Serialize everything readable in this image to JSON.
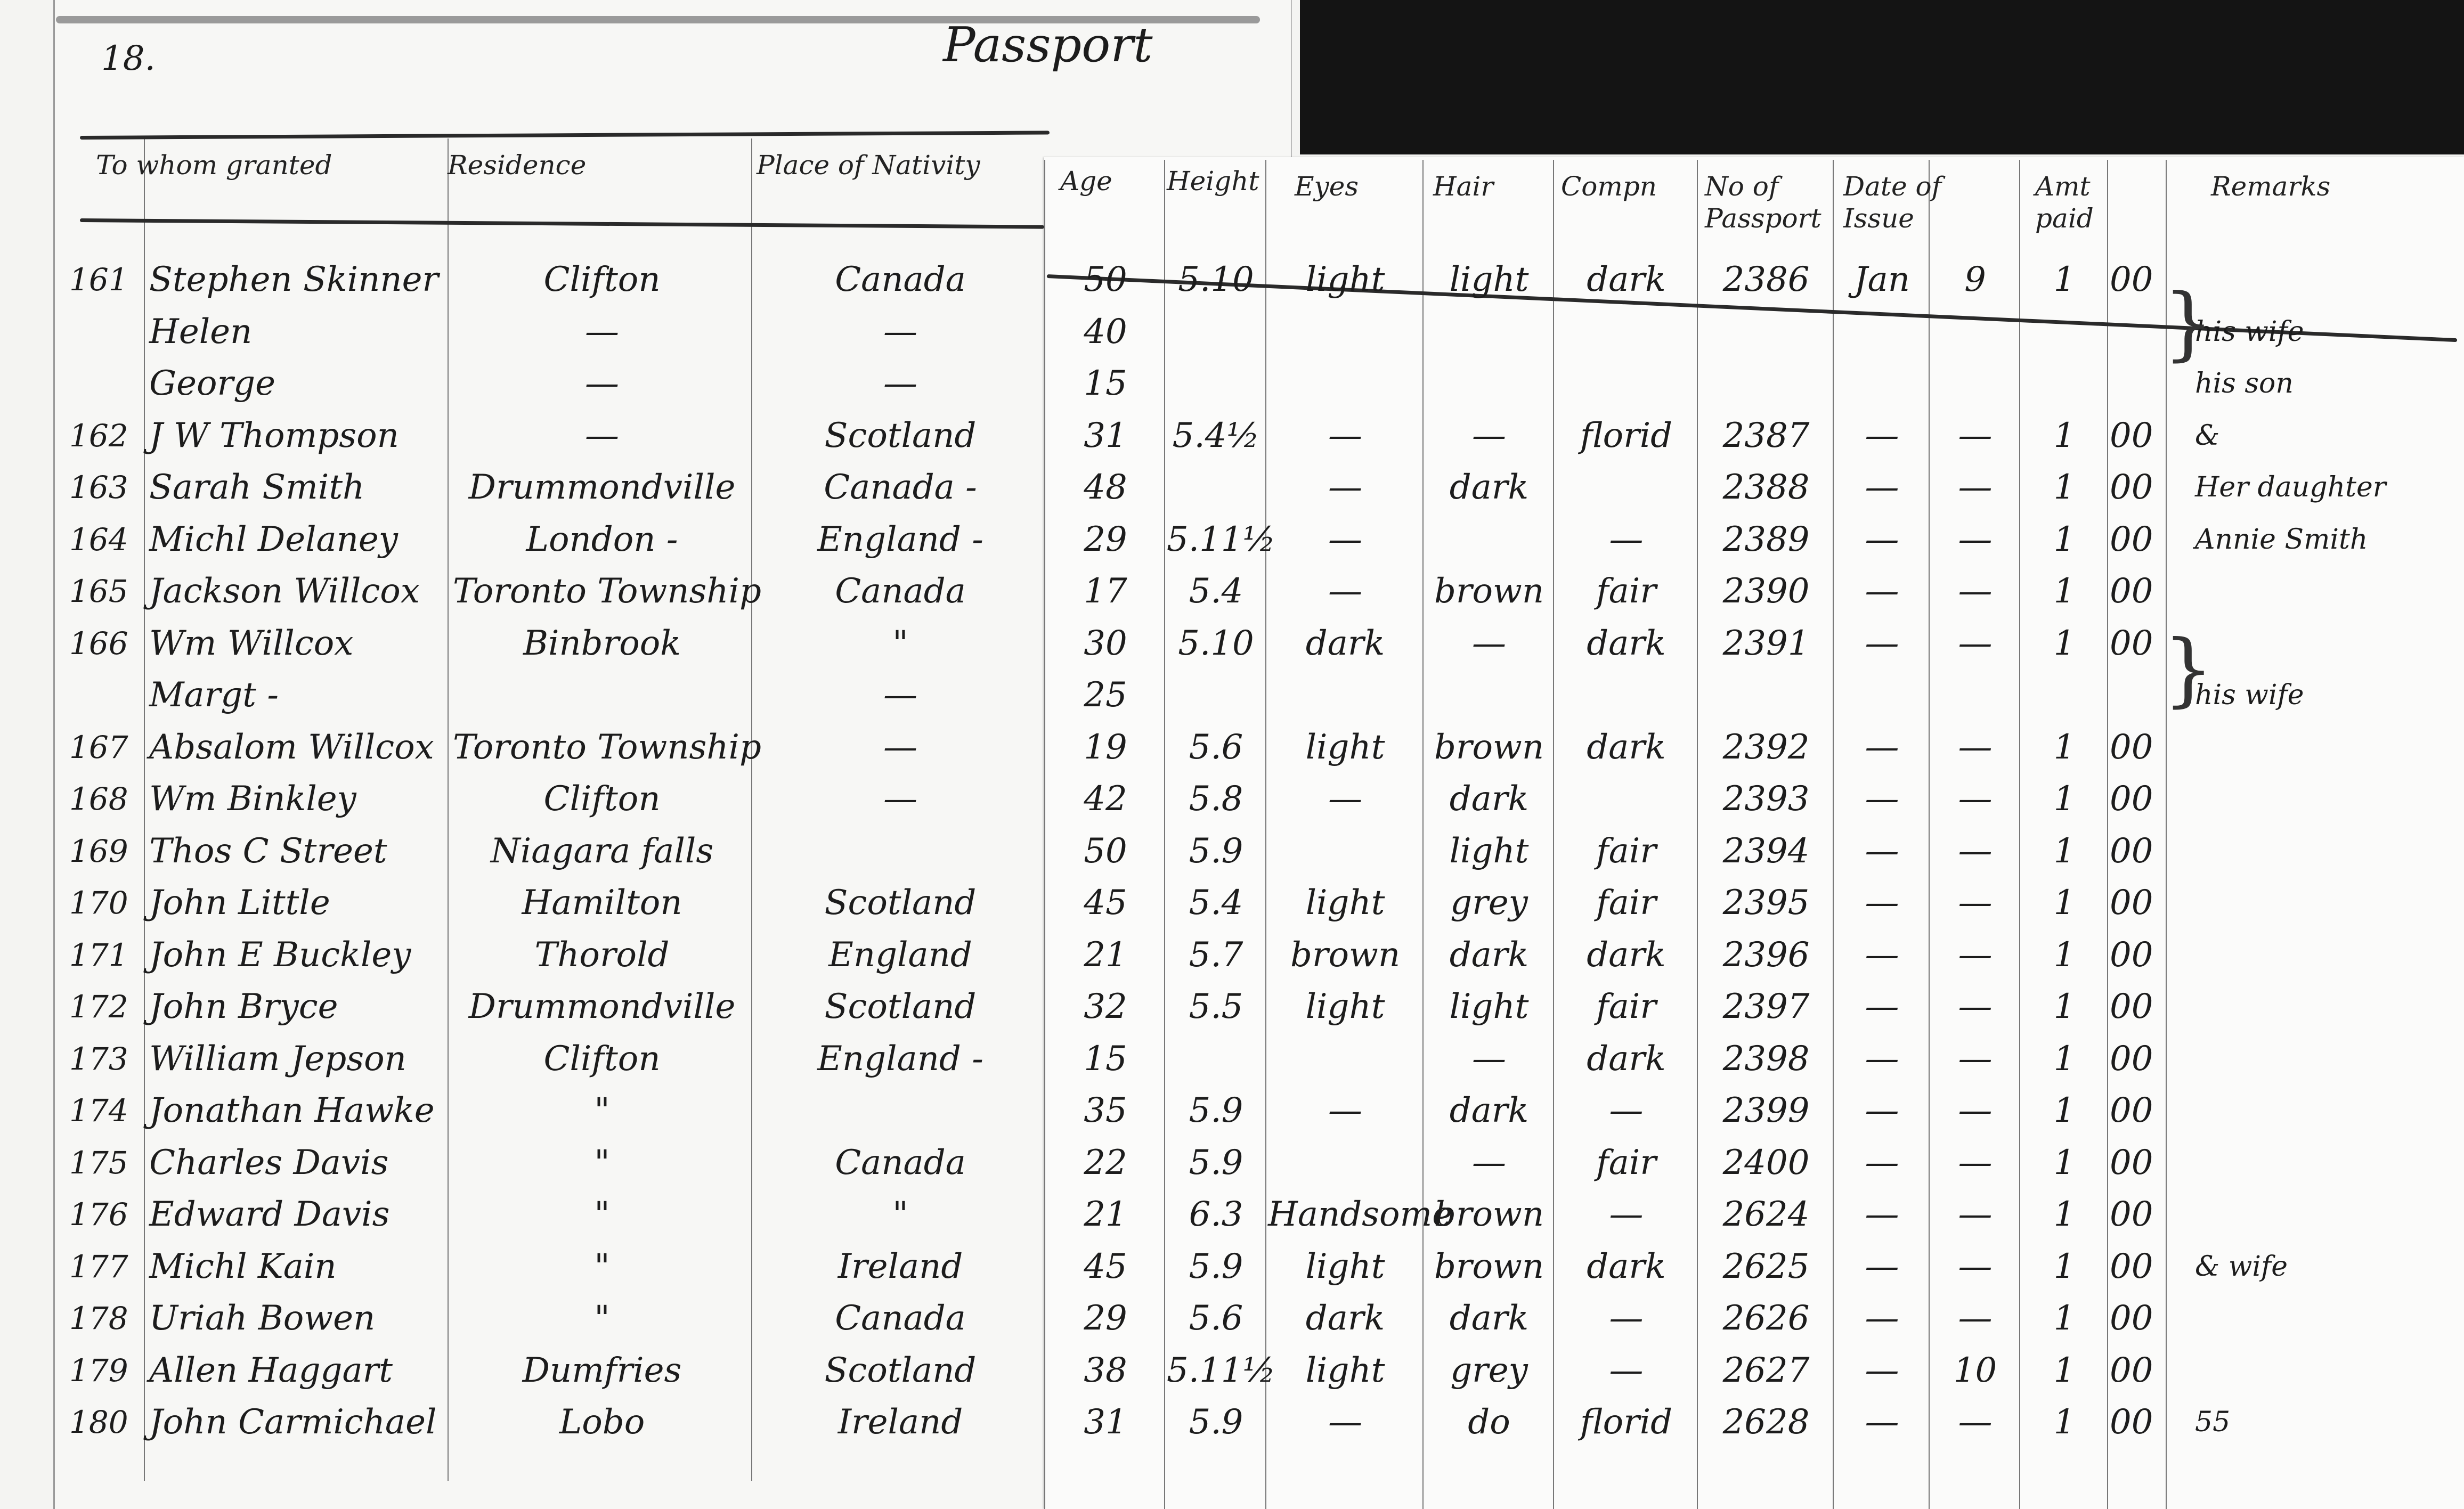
{
  "page": {
    "number": "18.",
    "title": "Passport"
  },
  "columns": [
    "To whom granted",
    "Residence",
    "Place of Nativity",
    "Age",
    "Height",
    "Eyes",
    "Hair",
    "Compn",
    "No of Passport",
    "Date of Issue",
    "Amt paid",
    "Remarks"
  ],
  "rows": [
    {
      "no": "161",
      "name": "Stephen Skinner",
      "residence": "Clifton",
      "nativity": "Canada",
      "age": "50",
      "height": "5.10",
      "eyes": "light",
      "hair": "light",
      "comp": "dark",
      "passport": "2386",
      "date1": "Jan",
      "date2": "9",
      "paid": "1",
      "paid2": "00",
      "remarks": ""
    },
    {
      "no": "",
      "name": "Helen",
      "residence": "—",
      "nativity": "—",
      "age": "40",
      "height": "",
      "eyes": "",
      "hair": "",
      "comp": "",
      "passport": "",
      "date1": "",
      "date2": "",
      "paid": "",
      "paid2": "",
      "remarks": "his wife"
    },
    {
      "no": "",
      "name": "George",
      "residence": "—",
      "nativity": "—",
      "age": "15",
      "height": "",
      "eyes": "",
      "hair": "",
      "comp": "",
      "passport": "",
      "date1": "",
      "date2": "",
      "paid": "",
      "paid2": "",
      "remarks": "his son"
    },
    {
      "no": "162",
      "name": "J W Thompson",
      "residence": "—",
      "nativity": "Scotland",
      "age": "31",
      "height": "5.4½",
      "eyes": "—",
      "hair": "—",
      "comp": "florid",
      "passport": "2387",
      "date1": "—",
      "date2": "—",
      "paid": "1",
      "paid2": "00",
      "remarks": "&"
    },
    {
      "no": "163",
      "name": "Sarah Smith",
      "residence": "Drummondville",
      "nativity": "Canada -",
      "age": "48",
      "height": "",
      "eyes": "—",
      "hair": "dark",
      "comp": "",
      "passport": "2388",
      "date1": "—",
      "date2": "—",
      "paid": "1",
      "paid2": "00",
      "remarks": "Her daughter"
    },
    {
      "no": "164",
      "name": "Michl Delaney",
      "residence": "London -",
      "nativity": "England -",
      "age": "29",
      "height": "5.11½",
      "eyes": "—",
      "hair": "",
      "comp": "—",
      "passport": "2389",
      "date1": "—",
      "date2": "—",
      "paid": "1",
      "paid2": "00",
      "remarks": "Annie Smith"
    },
    {
      "no": "165",
      "name": "Jackson Willcox",
      "residence": "Toronto Township",
      "nativity": "Canada",
      "age": "17",
      "height": "5.4",
      "eyes": "—",
      "hair": "brown",
      "comp": "fair",
      "passport": "2390",
      "date1": "—",
      "date2": "—",
      "paid": "1",
      "paid2": "00",
      "remarks": ""
    },
    {
      "no": "166",
      "name": "Wm Willcox",
      "residence": "Binbrook",
      "nativity": "\"",
      "age": "30",
      "height": "5.10",
      "eyes": "dark",
      "hair": "—",
      "comp": "dark",
      "passport": "2391",
      "date1": "—",
      "date2": "—",
      "paid": "1",
      "paid2": "00",
      "remarks": ""
    },
    {
      "no": "",
      "name": "Margt -",
      "residence": "",
      "nativity": "—",
      "age": "25",
      "height": "",
      "eyes": "",
      "hair": "",
      "comp": "",
      "passport": "",
      "date1": "",
      "date2": "",
      "paid": "",
      "paid2": "",
      "remarks": "his wife"
    },
    {
      "no": "167",
      "name": "Absalom Willcox",
      "residence": "Toronto Township",
      "nativity": "—",
      "age": "19",
      "height": "5.6",
      "eyes": "light",
      "hair": "brown",
      "comp": "dark",
      "passport": "2392",
      "date1": "—",
      "date2": "—",
      "paid": "1",
      "paid2": "00",
      "remarks": ""
    },
    {
      "no": "168",
      "name": "Wm Binkley",
      "residence": "Clifton",
      "nativity": "—",
      "age": "42",
      "height": "5.8",
      "eyes": "—",
      "hair": "dark",
      "comp": "",
      "passport": "2393",
      "date1": "—",
      "date2": "—",
      "paid": "1",
      "paid2": "00",
      "remarks": ""
    },
    {
      "no": "169",
      "name": "Thos C Street",
      "residence": "Niagara falls",
      "nativity": "",
      "age": "50",
      "height": "5.9",
      "eyes": "",
      "hair": "light",
      "comp": "fair",
      "passport": "2394",
      "date1": "—",
      "date2": "—",
      "paid": "1",
      "paid2": "00",
      "remarks": ""
    },
    {
      "no": "170",
      "name": "John Little",
      "residence": "Hamilton",
      "nativity": "Scotland",
      "age": "45",
      "height": "5.4",
      "eyes": "light",
      "hair": "grey",
      "comp": "fair",
      "passport": "2395",
      "date1": "—",
      "date2": "—",
      "paid": "1",
      "paid2": "00",
      "remarks": ""
    },
    {
      "no": "171",
      "name": "John E Buckley",
      "residence": "Thorold",
      "nativity": "England",
      "age": "21",
      "height": "5.7",
      "eyes": "brown",
      "hair": "dark",
      "comp": "dark",
      "passport": "2396",
      "date1": "—",
      "date2": "—",
      "paid": "1",
      "paid2": "00",
      "remarks": ""
    },
    {
      "no": "172",
      "name": "John Bryce",
      "residence": "Drummondville",
      "nativity": "Scotland",
      "age": "32",
      "height": "5.5",
      "eyes": "light",
      "hair": "light",
      "comp": "fair",
      "passport": "2397",
      "date1": "—",
      "date2": "—",
      "paid": "1",
      "paid2": "00",
      "remarks": ""
    },
    {
      "no": "173",
      "name": "William Jepson",
      "residence": "Clifton",
      "nativity": "England -",
      "age": "15",
      "height": "",
      "eyes": "",
      "hair": "—",
      "comp": "dark",
      "passport": "2398",
      "date1": "—",
      "date2": "—",
      "paid": "1",
      "paid2": "00",
      "remarks": ""
    },
    {
      "no": "174",
      "name": "Jonathan Hawke",
      "residence": "\"",
      "nativity": "",
      "age": "35",
      "height": "5.9",
      "eyes": "—",
      "hair": "dark",
      "comp": "—",
      "passport": "2399",
      "date1": "—",
      "date2": "—",
      "paid": "1",
      "paid2": "00",
      "remarks": ""
    },
    {
      "no": "175",
      "name": "Charles Davis",
      "residence": "\"",
      "nativity": "Canada",
      "age": "22",
      "height": "5.9",
      "eyes": "",
      "hair": "—",
      "comp": "fair",
      "passport": "2400",
      "date1": "—",
      "date2": "—",
      "paid": "1",
      "paid2": "00",
      "remarks": ""
    },
    {
      "no": "176",
      "name": "Edward Davis",
      "residence": "\"",
      "nativity": "\"",
      "age": "21",
      "height": "6.3",
      "eyes": "Handsome",
      "hair": "brown",
      "comp": "—",
      "passport": "2624",
      "date1": "—",
      "date2": "—",
      "paid": "1",
      "paid2": "00",
      "remarks": ""
    },
    {
      "no": "177",
      "name": "Michl Kain",
      "residence": "\"",
      "nativity": "Ireland",
      "age": "45",
      "height": "5.9",
      "eyes": "light",
      "hair": "brown",
      "comp": "dark",
      "passport": "2625",
      "date1": "—",
      "date2": "—",
      "paid": "1",
      "paid2": "00",
      "remarks": "& wife"
    },
    {
      "no": "178",
      "name": "Uriah Bowen",
      "residence": "\"",
      "nativity": "Canada",
      "age": "29",
      "height": "5.6",
      "eyes": "dark",
      "hair": "dark",
      "comp": "—",
      "passport": "2626",
      "date1": "—",
      "date2": "—",
      "paid": "1",
      "paid2": "00",
      "remarks": ""
    },
    {
      "no": "179",
      "name": "Allen Haggart",
      "residence": "Dumfries",
      "nativity": "Scotland",
      "age": "38",
      "height": "5.11½",
      "eyes": "light",
      "hair": "grey",
      "comp": "—",
      "passport": "2627",
      "date1": "—",
      "date2": "10",
      "paid": "1",
      "paid2": "00",
      "remarks": ""
    },
    {
      "no": "180",
      "name": "John Carmichael",
      "residence": "Lobo",
      "nativity": "Ireland",
      "age": "31",
      "height": "5.9",
      "eyes": "—",
      "hair": "do",
      "comp": "florid",
      "passport": "2628",
      "date1": "—",
      "date2": "—",
      "paid": "1",
      "paid2": "00",
      "remarks": "55"
    }
  ]
}
